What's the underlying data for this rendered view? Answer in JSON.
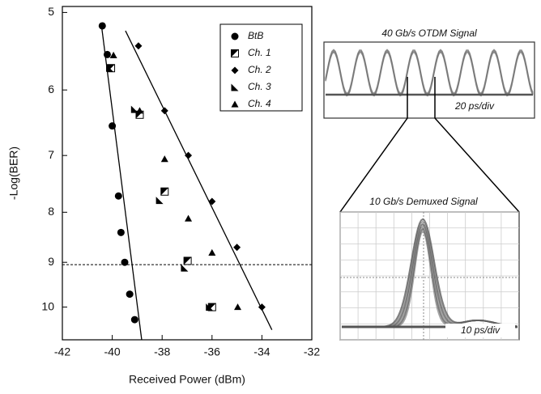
{
  "chart_data": {
    "type": "scatter",
    "x_label": "Received Power (dBm)",
    "y_label": "-Log(BER)",
    "xlim": [
      -42,
      -32
    ],
    "xticks": [
      -42,
      -40,
      -38,
      -36,
      -34,
      -32
    ],
    "ylim": [
      4.93,
      10.8
    ],
    "yticks": [
      5,
      6,
      7,
      8,
      9,
      10
    ],
    "y_log": true,
    "y_inverted": true,
    "legend_position": "upper right",
    "series": [
      {
        "name": "BtB",
        "marker": "circle",
        "color": "#000000",
        "x": [
          -40.4,
          -40.2,
          -40.0,
          -39.75,
          -39.65,
          -39.5,
          -39.3,
          -39.1
        ],
        "values": [
          5.16,
          5.52,
          6.53,
          7.7,
          8.39,
          9.0,
          9.7,
          10.3
        ]
      },
      {
        "name": "Ch. 1",
        "marker": "half-square",
        "color": "#000000",
        "x": [
          -40.05,
          -38.9,
          -37.9,
          -36.98,
          -36.0
        ],
        "values": [
          5.7,
          6.36,
          7.62,
          8.97,
          10.0
        ]
      },
      {
        "name": "Ch. 2",
        "marker": "diamond",
        "color": "#000000",
        "x": [
          -38.95,
          -37.9,
          -36.95,
          -36.0,
          -35.0,
          -34.0
        ],
        "values": [
          5.41,
          6.3,
          7.0,
          7.8,
          8.69,
          10.0
        ]
      },
      {
        "name": "Ch. 3",
        "marker": "half-triangle",
        "color": "#000000",
        "x": [
          -40.1,
          -39.1,
          -38.1,
          -37.1,
          -36.1
        ],
        "values": [
          5.7,
          6.28,
          7.78,
          9.12,
          10.0
        ]
      },
      {
        "name": "Ch. 4",
        "marker": "triangle",
        "color": "#000000",
        "x": [
          -39.95,
          -38.9,
          -37.9,
          -36.95,
          -36.0,
          -34.97
        ],
        "values": [
          5.53,
          6.3,
          7.06,
          8.12,
          8.8,
          10.0
        ]
      }
    ],
    "fit_lines": [
      {
        "x": [
          -40.43,
          -38.82
        ],
        "values": [
          5.16,
          10.8
        ]
      },
      {
        "x": [
          -39.47,
          -33.6
        ],
        "values": [
          5.22,
          10.55
        ]
      }
    ],
    "threshold": 9.05,
    "insets": [
      {
        "title": "40 Gb/s OTDM Signal",
        "scale": "20 ps/div"
      },
      {
        "title": "10 Gb/s Demuxed Signal",
        "scale": "10 ps/div"
      }
    ]
  }
}
